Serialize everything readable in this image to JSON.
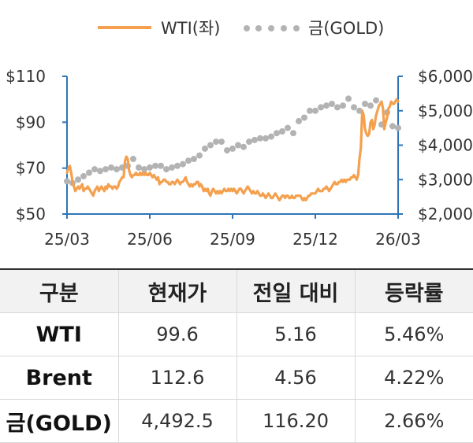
{
  "chart_data": {
    "type": "line",
    "legend": {
      "position": "top-center"
    },
    "x_ticks": [
      "25/03",
      "25/06",
      "25/09",
      "25/12",
      "26/03"
    ],
    "y_left": {
      "ticks": [
        "$110",
        "$90",
        "$70",
        "$50"
      ],
      "range": [
        50,
        110
      ]
    },
    "y_right": {
      "ticks": [
        "$6,000",
        "$5,000",
        "$4,000",
        "$3,000",
        "$2,000"
      ],
      "range": [
        2000,
        6000
      ]
    },
    "colors": {
      "wti": "#f4a04e",
      "gold": "#b3b3b3",
      "axis": "#2e75b6"
    },
    "series": [
      {
        "name": "WTI(좌)",
        "axis": "left",
        "style": "solid-line",
        "x_months": [
          0,
          0.05,
          0.1,
          0.15,
          0.2,
          0.25,
          0.3,
          0.35,
          0.4,
          0.45,
          0.5,
          0.55,
          0.6,
          0.65,
          0.7,
          0.75,
          0.8,
          0.85,
          0.9,
          0.95,
          1.0,
          1.05,
          1.1,
          1.15,
          1.2,
          1.25,
          1.3,
          1.35,
          1.4,
          1.45,
          1.5,
          1.55,
          1.6,
          1.65,
          1.7,
          1.75,
          1.8,
          1.85,
          1.9,
          1.95,
          2.0,
          2.05,
          2.1,
          2.15,
          2.2,
          2.25,
          2.3,
          2.35,
          2.4,
          2.45,
          2.5,
          2.55,
          2.6,
          2.65,
          2.7,
          2.75,
          2.8,
          2.85,
          2.9,
          2.95,
          3.0,
          3.05,
          3.1,
          3.15,
          3.2,
          3.25,
          3.3,
          3.35,
          3.4,
          3.45,
          3.5,
          3.55,
          3.6,
          3.65,
          3.7,
          3.75,
          3.8,
          3.85,
          3.9,
          3.95,
          4.0,
          4.05,
          4.1,
          4.15,
          4.2,
          4.25,
          4.3,
          4.35,
          4.4,
          4.45,
          4.5,
          4.55,
          4.6,
          4.65,
          4.7,
          4.75,
          4.8,
          4.85,
          4.9,
          4.95,
          5.0,
          5.05,
          5.1,
          5.15,
          5.2,
          5.25,
          5.3,
          5.35,
          5.4,
          5.45,
          5.5,
          5.55,
          5.6,
          5.65,
          5.7,
          5.75,
          5.8,
          5.85,
          5.9,
          5.95,
          6.0,
          6.05,
          6.1,
          6.15,
          6.2,
          6.25,
          6.3,
          6.35,
          6.4,
          6.45,
          6.5,
          6.55,
          6.6,
          6.65,
          6.7,
          6.75,
          6.8,
          6.85,
          6.9,
          6.95,
          7.0,
          7.05,
          7.1,
          7.15,
          7.2,
          7.25,
          7.3,
          7.35,
          7.4,
          7.45,
          7.5,
          7.55,
          7.6,
          7.65,
          7.7,
          7.75,
          7.8,
          7.85,
          7.9,
          7.95,
          8.0,
          8.05,
          8.1,
          8.15,
          8.2,
          8.25,
          8.3,
          8.35,
          8.4,
          8.45,
          8.5,
          8.55,
          8.6,
          8.65,
          8.7,
          8.75,
          8.8,
          8.85,
          8.9,
          8.95,
          9.0,
          9.05,
          9.1,
          9.15,
          9.2,
          9.25,
          9.3,
          9.35,
          9.4,
          9.45,
          9.5,
          9.55,
          9.6,
          9.65,
          9.7,
          9.75,
          9.8,
          9.85,
          9.9,
          9.95,
          10.0,
          10.05,
          10.1,
          10.15,
          10.2,
          10.25,
          10.3,
          10.35,
          10.4,
          10.45,
          10.5,
          10.55,
          10.6,
          10.65,
          10.7,
          10.75,
          10.8,
          10.85,
          10.9,
          10.95,
          11.0,
          11.05,
          11.1,
          11.15,
          11.2,
          11.25,
          11.3,
          11.35,
          11.4,
          11.45,
          11.5,
          11.55,
          11.6,
          11.65,
          11.7,
          11.75,
          11.8,
          11.85,
          11.9,
          11.95,
          12.0
        ],
        "values": [
          68,
          70,
          71,
          68,
          64,
          62,
          60,
          61,
          62,
          61,
          62,
          63,
          60,
          61,
          61,
          62,
          61,
          60,
          59,
          58,
          60,
          61,
          62,
          60,
          61,
          62,
          61,
          60,
          62,
          61,
          63,
          62,
          62,
          61,
          62,
          62,
          61,
          62,
          64,
          65,
          66,
          66,
          73,
          75,
          74,
          69,
          67,
          66,
          67,
          67,
          68,
          67,
          67,
          68,
          67,
          68,
          67,
          68,
          67,
          67,
          68,
          67,
          66,
          67,
          66,
          65,
          66,
          63,
          64,
          64,
          65,
          65,
          64,
          64,
          63,
          63,
          64,
          64,
          63,
          64,
          65,
          64,
          63,
          64,
          64,
          65,
          66,
          64,
          63,
          62,
          63,
          62,
          63,
          63,
          64,
          64,
          62,
          63,
          62,
          60,
          61,
          60,
          61,
          59,
          58,
          60,
          61,
          60,
          59,
          60,
          59,
          60,
          59,
          60,
          61,
          60,
          60,
          61,
          60,
          61,
          60,
          61,
          60,
          59,
          60,
          61,
          61,
          60,
          59,
          60,
          61,
          62,
          61,
          60,
          59,
          60,
          59,
          59,
          60,
          59,
          58,
          58,
          59,
          58,
          57,
          58,
          59,
          58,
          57,
          57,
          58,
          59,
          58,
          57,
          56,
          57,
          58,
          58,
          57,
          58,
          58,
          57,
          57,
          58,
          57,
          57,
          58,
          58,
          58,
          58,
          57,
          56,
          57,
          56,
          57,
          58,
          58,
          59,
          59,
          59,
          59,
          60,
          61,
          60,
          60,
          60,
          61,
          61,
          62,
          61,
          60,
          61,
          62,
          63,
          64,
          63,
          63,
          64,
          64,
          65,
          64,
          65,
          64,
          65,
          65,
          65,
          66,
          66,
          67,
          66,
          65,
          67,
          74,
          79,
          95,
          93,
          87,
          85,
          84,
          85,
          90,
          91,
          87,
          89,
          93,
          95,
          97,
          98,
          99,
          96,
          87,
          90,
          92,
          96,
          97,
          99,
          98,
          98,
          99,
          100,
          99
        ]
      },
      {
        "name": "금(GOLD)",
        "axis": "right",
        "style": "dotted",
        "x_months": [
          0.0,
          0.2,
          0.4,
          0.6,
          0.8,
          1.0,
          1.2,
          1.4,
          1.6,
          1.8,
          2.0,
          2.2,
          2.4,
          2.6,
          2.8,
          3.0,
          3.2,
          3.4,
          3.6,
          3.8,
          4.0,
          4.2,
          4.4,
          4.6,
          4.8,
          5.0,
          5.2,
          5.4,
          5.6,
          5.8,
          6.0,
          6.2,
          6.4,
          6.6,
          6.8,
          7.0,
          7.2,
          7.4,
          7.6,
          7.8,
          8.0,
          8.2,
          8.4,
          8.6,
          8.8,
          9.0,
          9.2,
          9.4,
          9.6,
          9.8,
          10.0,
          10.2,
          10.4,
          10.6,
          10.8,
          11.0,
          11.2,
          11.4,
          11.6,
          11.8,
          12.0
        ],
        "values": [
          2950,
          2900,
          3000,
          3100,
          3200,
          3300,
          3250,
          3300,
          3350,
          3300,
          3350,
          3400,
          3600,
          3350,
          3300,
          3350,
          3400,
          3400,
          3300,
          3350,
          3400,
          3450,
          3550,
          3600,
          3700,
          3900,
          4000,
          4100,
          4100,
          3850,
          3900,
          4000,
          3950,
          4100,
          4150,
          4200,
          4200,
          4250,
          4350,
          4400,
          4500,
          4350,
          4700,
          4800,
          5000,
          5000,
          5100,
          5150,
          5200,
          5100,
          5150,
          5350,
          5100,
          5000,
          5200,
          5150,
          5300,
          4600,
          4950,
          4550,
          4500
        ]
      }
    ]
  },
  "table": {
    "headers": [
      "구분",
      "현재가",
      "전일 대비",
      "등락률"
    ],
    "rows": [
      [
        "WTI",
        "99.6",
        "5.16",
        "5.46%"
      ],
      [
        "Brent",
        "112.6",
        "4.56",
        "4.22%"
      ],
      [
        "금(GOLD)",
        "4,492.5",
        "116.20",
        "2.66%"
      ]
    ]
  }
}
